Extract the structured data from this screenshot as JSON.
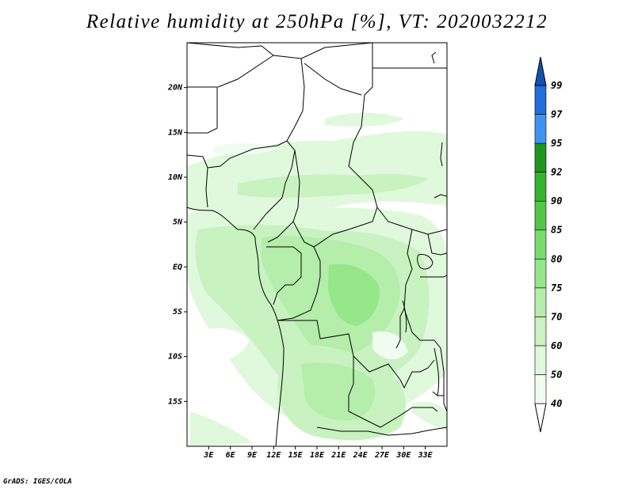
{
  "title": "Relative humidity at 250hPa [%], VT: 2020032212",
  "credit": "GrADS: IGES/COLA",
  "map": {
    "projection": "lat-lon",
    "lon_range": [
      0,
      36
    ],
    "lat_range": [
      -20,
      25
    ],
    "lat_ticks": [
      {
        "value": 20,
        "label": "20N"
      },
      {
        "value": 15,
        "label": "15N"
      },
      {
        "value": 10,
        "label": "10N"
      },
      {
        "value": 5,
        "label": "5N"
      },
      {
        "value": 0,
        "label": "EQ"
      },
      {
        "value": -5,
        "label": "5S"
      },
      {
        "value": -10,
        "label": "10S"
      },
      {
        "value": -15,
        "label": "15S"
      }
    ],
    "lon_ticks": [
      {
        "value": 3,
        "label": "3E"
      },
      {
        "value": 6,
        "label": "6E"
      },
      {
        "value": 9,
        "label": "9E"
      },
      {
        "value": 12,
        "label": "12E"
      },
      {
        "value": 15,
        "label": "15E"
      },
      {
        "value": 18,
        "label": "18E"
      },
      {
        "value": 21,
        "label": "21E"
      },
      {
        "value": 24,
        "label": "24E"
      },
      {
        "value": 27,
        "label": "27E"
      },
      {
        "value": 30,
        "label": "30E"
      },
      {
        "value": 33,
        "label": "33E"
      }
    ]
  },
  "colorbar": {
    "levels": [
      {
        "from": "40",
        "to": "50",
        "color": "#f0fcf0"
      },
      {
        "from": "50",
        "to": "60",
        "color": "#e0f8dc"
      },
      {
        "from": "60",
        "to": "70",
        "color": "#c8f2c0"
      },
      {
        "from": "70",
        "to": "75",
        "color": "#b4eeaa"
      },
      {
        "from": "75",
        "to": "80",
        "color": "#96e68a"
      },
      {
        "from": "80",
        "to": "85",
        "color": "#78dc6c"
      },
      {
        "from": "85",
        "to": "90",
        "color": "#50c846"
      },
      {
        "from": "90",
        "to": "92",
        "color": "#32b42d"
      },
      {
        "from": "92",
        "to": "95",
        "color": "#1e961e"
      },
      {
        "from": "95",
        "to": "97",
        "color": "#3c96f0"
      },
      {
        "from": "97",
        "to": "99",
        "color": "#1e6edc"
      },
      {
        "from": "99",
        "to": "",
        "color": "#1450b4"
      }
    ],
    "labels": [
      "40",
      "50",
      "60",
      "70",
      "75",
      "80",
      "85",
      "90",
      "92",
      "95",
      "97",
      "99"
    ]
  }
}
